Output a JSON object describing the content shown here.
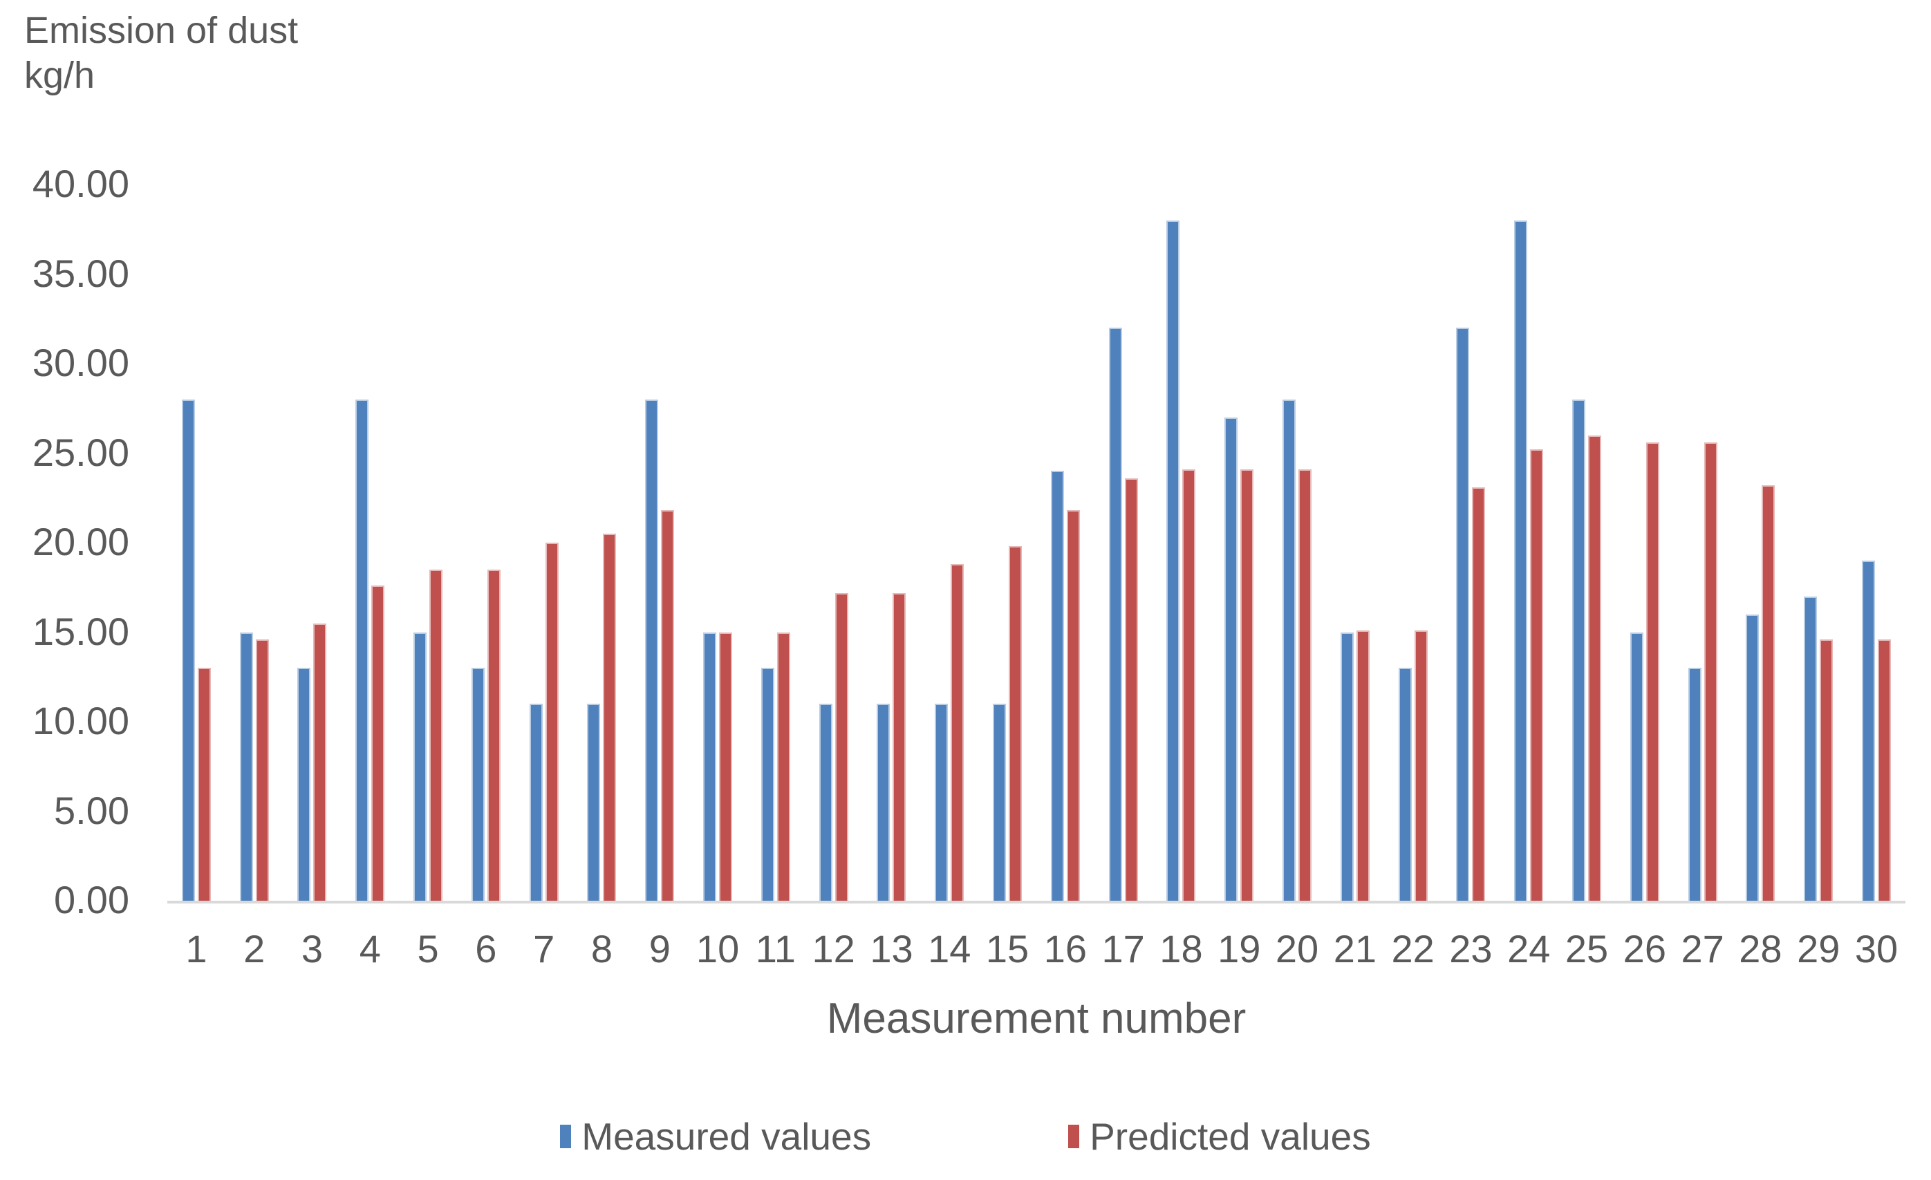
{
  "y_axis_title_line1": "Emission of dust",
  "y_axis_title_line2": "kg/h",
  "x_axis_title": "Measurement number",
  "text_color": "#595959",
  "axis_line_color": "#d9d9d9",
  "chart_data": {
    "type": "bar",
    "title": "",
    "ylabel": "Emission of dust kg/h",
    "xlabel": "Measurement number",
    "ylim": [
      0,
      40
    ],
    "ytick_step": 5,
    "ytick_format_decimals": 2,
    "grid": false,
    "legend_position": "bottom",
    "categories": [
      1,
      2,
      3,
      4,
      5,
      6,
      7,
      8,
      9,
      10,
      11,
      12,
      13,
      14,
      15,
      16,
      17,
      18,
      19,
      20,
      21,
      22,
      23,
      24,
      25,
      26,
      27,
      28,
      29,
      30
    ],
    "series": [
      {
        "name": "Measured values",
        "color": "#4f81bd",
        "border_color": "#b8cce4",
        "values": [
          28,
          15,
          13,
          28,
          15,
          13,
          11,
          11,
          28,
          15,
          13,
          11,
          11,
          11,
          11,
          24,
          32,
          38,
          27,
          28,
          15,
          13,
          32,
          38,
          28,
          15,
          13,
          16,
          17,
          19
        ]
      },
      {
        "name": "Predicted values",
        "color": "#bf504d",
        "border_color": "#e6b8b7",
        "values": [
          13.0,
          14.6,
          15.5,
          17.6,
          18.5,
          18.5,
          20.0,
          20.5,
          21.8,
          15.0,
          15.0,
          17.2,
          17.2,
          18.8,
          19.8,
          21.8,
          23.6,
          24.1,
          24.1,
          24.1,
          15.1,
          15.1,
          23.1,
          25.2,
          26.0,
          25.6,
          25.6,
          23.2,
          14.6,
          14.6
        ]
      }
    ]
  }
}
